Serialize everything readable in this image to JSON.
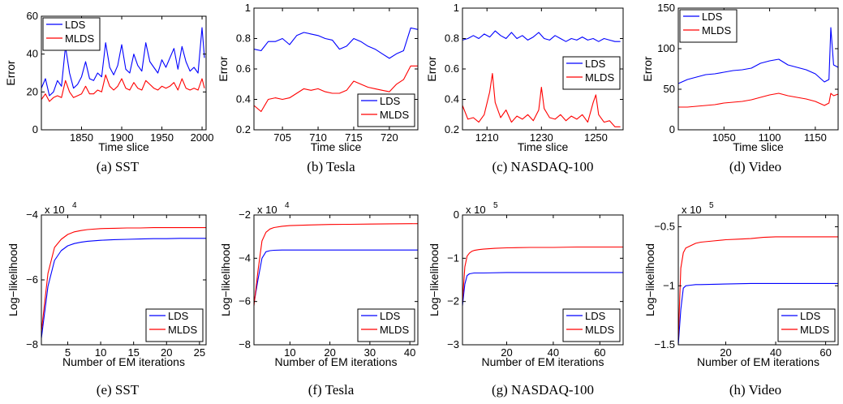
{
  "colors": {
    "lds": "#0000ff",
    "mlds": "#ff0000"
  },
  "chart_data": [
    {
      "type": "line",
      "caption": "(a)  SST",
      "xlabel": "Time slice",
      "ylabel": "Error",
      "xlim": [
        1800,
        2005
      ],
      "ylim": [
        0,
        60
      ],
      "xticks": [
        1850,
        1900,
        1950,
        2000
      ],
      "yticks": [
        0,
        20,
        40,
        60
      ],
      "legend": {
        "position": "top-left"
      },
      "series": [
        {
          "name": "LDS",
          "x": [
            1800,
            1805,
            1810,
            1815,
            1820,
            1825,
            1830,
            1835,
            1840,
            1845,
            1850,
            1855,
            1860,
            1865,
            1870,
            1875,
            1880,
            1885,
            1890,
            1895,
            1900,
            1905,
            1910,
            1915,
            1920,
            1925,
            1930,
            1935,
            1940,
            1945,
            1950,
            1955,
            1960,
            1965,
            1970,
            1975,
            1980,
            1985,
            1990,
            1995,
            2000,
            2003
          ],
          "y": [
            22,
            27,
            18,
            20,
            26,
            23,
            44,
            30,
            22,
            24,
            28,
            36,
            27,
            26,
            30,
            28,
            46,
            33,
            29,
            34,
            45,
            32,
            30,
            40,
            34,
            31,
            46,
            36,
            33,
            30,
            37,
            33,
            38,
            43,
            32,
            44,
            36,
            31,
            33,
            30,
            54,
            38
          ]
        },
        {
          "name": "MLDS",
          "x": [
            1800,
            1805,
            1810,
            1815,
            1820,
            1825,
            1830,
            1835,
            1840,
            1845,
            1850,
            1855,
            1860,
            1865,
            1870,
            1875,
            1880,
            1885,
            1890,
            1895,
            1900,
            1905,
            1910,
            1915,
            1920,
            1925,
            1930,
            1935,
            1940,
            1945,
            1950,
            1955,
            1960,
            1965,
            1970,
            1975,
            1980,
            1985,
            1990,
            1995,
            2000,
            2003
          ],
          "y": [
            16,
            19,
            15,
            17,
            18,
            17,
            26,
            20,
            17,
            18,
            19,
            23,
            19,
            19,
            21,
            20,
            29,
            23,
            21,
            23,
            27,
            22,
            21,
            25,
            22,
            21,
            26,
            24,
            22,
            21,
            23,
            22,
            23,
            25,
            21,
            27,
            22,
            21,
            22,
            21,
            27,
            22
          ]
        }
      ]
    },
    {
      "type": "line",
      "caption": "(b)  Tesla",
      "xlabel": "Time slice",
      "ylabel": "Error",
      "xlim": [
        701,
        724
      ],
      "ylim": [
        0.2,
        1
      ],
      "xticks": [
        705,
        710,
        715,
        720
      ],
      "yticks": [
        0.2,
        0.4,
        0.6,
        0.8,
        1
      ],
      "ytick_labels": [
        "0.2",
        "0.4",
        "0.6",
        "0.8",
        "1"
      ],
      "legend": {
        "position": "bottom-right"
      },
      "series": [
        {
          "name": "LDS",
          "x": [
            701,
            702,
            703,
            704,
            705,
            706,
            707,
            708,
            709,
            710,
            711,
            712,
            713,
            714,
            715,
            716,
            717,
            718,
            719,
            720,
            721,
            722,
            723,
            724
          ],
          "y": [
            0.73,
            0.72,
            0.78,
            0.78,
            0.8,
            0.76,
            0.82,
            0.84,
            0.83,
            0.82,
            0.8,
            0.79,
            0.73,
            0.75,
            0.8,
            0.78,
            0.75,
            0.73,
            0.7,
            0.67,
            0.7,
            0.72,
            0.87,
            0.86
          ]
        },
        {
          "name": "MLDS",
          "x": [
            701,
            702,
            703,
            704,
            705,
            706,
            707,
            708,
            709,
            710,
            711,
            712,
            713,
            714,
            715,
            716,
            717,
            718,
            719,
            720,
            721,
            722,
            723,
            724
          ],
          "y": [
            0.36,
            0.32,
            0.4,
            0.41,
            0.4,
            0.41,
            0.44,
            0.47,
            0.46,
            0.47,
            0.45,
            0.44,
            0.44,
            0.46,
            0.52,
            0.5,
            0.48,
            0.47,
            0.46,
            0.45,
            0.5,
            0.53,
            0.62,
            0.62
          ]
        }
      ]
    },
    {
      "type": "line",
      "caption": "(c)  NASDAQ-100",
      "xlabel": "Time slice",
      "ylabel": "Error",
      "xlim": [
        1201,
        1260
      ],
      "ylim": [
        0.2,
        1
      ],
      "xticks": [
        1210,
        1230,
        1250
      ],
      "yticks": [
        0.2,
        0.4,
        0.6,
        0.8,
        1
      ],
      "ytick_labels": [
        "0.2",
        "0.4",
        "0.6",
        "0.8",
        "1"
      ],
      "legend": {
        "position": "center-right"
      },
      "series": [
        {
          "name": "LDS",
          "x": [
            1201,
            1203,
            1205,
            1207,
            1209,
            1211,
            1213,
            1215,
            1217,
            1219,
            1221,
            1223,
            1225,
            1227,
            1229,
            1231,
            1233,
            1235,
            1237,
            1239,
            1241,
            1243,
            1245,
            1247,
            1249,
            1251,
            1253,
            1255,
            1257,
            1259
          ],
          "y": [
            0.79,
            0.8,
            0.82,
            0.8,
            0.83,
            0.81,
            0.85,
            0.82,
            0.8,
            0.84,
            0.8,
            0.82,
            0.79,
            0.81,
            0.84,
            0.8,
            0.79,
            0.82,
            0.8,
            0.78,
            0.8,
            0.79,
            0.81,
            0.79,
            0.8,
            0.78,
            0.8,
            0.79,
            0.78,
            0.78
          ]
        },
        {
          "name": "MLDS",
          "x": [
            1201,
            1203,
            1205,
            1207,
            1209,
            1211,
            1212,
            1213,
            1215,
            1217,
            1219,
            1221,
            1223,
            1225,
            1227,
            1229,
            1230,
            1231,
            1233,
            1235,
            1237,
            1239,
            1241,
            1243,
            1245,
            1247,
            1249,
            1250,
            1251,
            1253,
            1255,
            1257,
            1259
          ],
          "y": [
            0.36,
            0.27,
            0.28,
            0.25,
            0.3,
            0.45,
            0.57,
            0.38,
            0.28,
            0.33,
            0.25,
            0.29,
            0.27,
            0.3,
            0.26,
            0.33,
            0.48,
            0.34,
            0.28,
            0.27,
            0.3,
            0.26,
            0.29,
            0.27,
            0.3,
            0.25,
            0.38,
            0.43,
            0.3,
            0.25,
            0.26,
            0.22,
            0.22
          ]
        }
      ]
    },
    {
      "type": "line",
      "caption": "(d)  Video",
      "xlabel": "Time slice",
      "ylabel": "Error",
      "xlim": [
        1000,
        1175
      ],
      "ylim": [
        0,
        150
      ],
      "xticks": [
        1050,
        1100,
        1150
      ],
      "yticks": [
        0,
        50,
        100,
        150
      ],
      "legend": {
        "position": "top-left"
      },
      "series": [
        {
          "name": "LDS",
          "x": [
            1000,
            1010,
            1020,
            1030,
            1040,
            1050,
            1060,
            1070,
            1080,
            1090,
            1100,
            1110,
            1120,
            1130,
            1140,
            1150,
            1160,
            1165,
            1167,
            1170,
            1175
          ],
          "y": [
            57,
            62,
            65,
            68,
            69,
            71,
            73,
            74,
            76,
            82,
            85,
            87,
            80,
            77,
            74,
            69,
            59,
            62,
            126,
            80,
            77
          ]
        },
        {
          "name": "MLDS",
          "x": [
            1000,
            1010,
            1020,
            1030,
            1040,
            1050,
            1060,
            1070,
            1080,
            1090,
            1100,
            1110,
            1120,
            1130,
            1140,
            1150,
            1160,
            1165,
            1167,
            1170,
            1175
          ],
          "y": [
            28,
            28,
            29,
            30,
            31,
            33,
            34,
            35,
            37,
            40,
            43,
            45,
            42,
            40,
            38,
            35,
            30,
            33,
            45,
            42,
            44
          ]
        }
      ]
    },
    {
      "type": "line",
      "caption": "(e)  SST",
      "xlabel": "Number of EM iterations",
      "ylabel": "Log−likelihood",
      "multiplier": "x 10",
      "multiplier_exp": "4",
      "xlim": [
        1,
        26
      ],
      "ylim": [
        -8,
        -4
      ],
      "xticks": [
        5,
        10,
        15,
        20,
        25
      ],
      "yticks": [
        -8,
        -6,
        -4
      ],
      "ytick_labels": [
        "−8",
        "−6",
        "−4"
      ],
      "legend": {
        "position": "bottom-right"
      },
      "series": [
        {
          "name": "LDS",
          "x": [
            1,
            2,
            3,
            4,
            5,
            6,
            7,
            8,
            10,
            12,
            14,
            16,
            18,
            20,
            22,
            24,
            26
          ],
          "y": [
            -7.8,
            -6.2,
            -5.4,
            -5.1,
            -4.95,
            -4.88,
            -4.84,
            -4.81,
            -4.78,
            -4.76,
            -4.75,
            -4.74,
            -4.73,
            -4.73,
            -4.72,
            -4.72,
            -4.72
          ]
        },
        {
          "name": "MLDS",
          "x": [
            1,
            2,
            3,
            4,
            5,
            6,
            7,
            8,
            10,
            12,
            14,
            16,
            18,
            20,
            22,
            24,
            26
          ],
          "y": [
            -7.6,
            -5.8,
            -5.0,
            -4.75,
            -4.6,
            -4.52,
            -4.48,
            -4.45,
            -4.42,
            -4.41,
            -4.4,
            -4.4,
            -4.39,
            -4.39,
            -4.39,
            -4.39,
            -4.39
          ]
        }
      ]
    },
    {
      "type": "line",
      "caption": "(f)  Tesla",
      "xlabel": "Number of EM iterations",
      "ylabel": "Log−likelihood",
      "multiplier": "x 10",
      "multiplier_exp": "4",
      "xlim": [
        1,
        42
      ],
      "ylim": [
        -8,
        -2
      ],
      "xticks": [
        10,
        20,
        30,
        40
      ],
      "yticks": [
        -8,
        -6,
        -4,
        -2
      ],
      "ytick_labels": [
        "−8",
        "−6",
        "−4",
        "−2"
      ],
      "legend": {
        "position": "bottom-right"
      },
      "series": [
        {
          "name": "LDS",
          "x": [
            1,
            2,
            3,
            4,
            5,
            6,
            8,
            10,
            15,
            20,
            25,
            30,
            35,
            42
          ],
          "y": [
            -6.1,
            -5.0,
            -4.0,
            -3.7,
            -3.65,
            -3.63,
            -3.62,
            -3.62,
            -3.62,
            -3.62,
            -3.62,
            -3.62,
            -3.62,
            -3.62
          ]
        },
        {
          "name": "MLDS",
          "x": [
            1,
            2,
            3,
            4,
            5,
            6,
            8,
            10,
            15,
            20,
            25,
            30,
            35,
            42
          ],
          "y": [
            -6.2,
            -4.6,
            -3.2,
            -2.8,
            -2.65,
            -2.58,
            -2.52,
            -2.49,
            -2.46,
            -2.44,
            -2.43,
            -2.42,
            -2.41,
            -2.4
          ]
        }
      ]
    },
    {
      "type": "line",
      "caption": "(g)  NASDAQ-100",
      "xlabel": "Number of EM iterations",
      "ylabel": "Log−likelihood",
      "multiplier": "x 10",
      "multiplier_exp": "5",
      "xlim": [
        1,
        70
      ],
      "ylim": [
        -3,
        0
      ],
      "xticks": [
        20,
        40,
        60
      ],
      "yticks": [
        -3,
        -2,
        -1,
        0
      ],
      "ytick_labels": [
        "−3",
        "−2",
        "−1",
        "0"
      ],
      "legend": {
        "position": "bottom-right"
      },
      "series": [
        {
          "name": "LDS",
          "x": [
            1,
            2,
            3,
            4,
            5,
            6,
            8,
            10,
            20,
            30,
            40,
            50,
            60,
            70
          ],
          "y": [
            -2.1,
            -1.6,
            -1.4,
            -1.36,
            -1.35,
            -1.34,
            -1.34,
            -1.34,
            -1.33,
            -1.33,
            -1.33,
            -1.33,
            -1.33,
            -1.33
          ]
        },
        {
          "name": "MLDS",
          "x": [
            1,
            2,
            3,
            4,
            5,
            6,
            8,
            10,
            15,
            20,
            30,
            40,
            50,
            60,
            70
          ],
          "y": [
            -2.0,
            -1.2,
            -0.95,
            -0.88,
            -0.84,
            -0.82,
            -0.8,
            -0.79,
            -0.77,
            -0.76,
            -0.75,
            -0.75,
            -0.74,
            -0.74,
            -0.74
          ]
        }
      ]
    },
    {
      "type": "line",
      "caption": "(h)  Video",
      "xlabel": "Number of EM iterations",
      "ylabel": "Log−likelihood",
      "multiplier": "x 10",
      "multiplier_exp": "5",
      "xlim": [
        1,
        65
      ],
      "ylim": [
        -1.5,
        -0.4
      ],
      "xticks": [
        20,
        40,
        60
      ],
      "yticks": [
        -1.5,
        -1,
        -0.5
      ],
      "ytick_labels": [
        "−1.5",
        "−1",
        "−0.5"
      ],
      "legend": {
        "position": "bottom-right"
      },
      "series": [
        {
          "name": "LDS",
          "x": [
            1,
            2,
            3,
            4,
            6,
            8,
            10,
            20,
            30,
            40,
            50,
            60,
            65
          ],
          "y": [
            -1.5,
            -1.2,
            -1.02,
            -1.0,
            -0.995,
            -0.99,
            -0.99,
            -0.985,
            -0.98,
            -0.98,
            -0.98,
            -0.98,
            -0.98
          ]
        },
        {
          "name": "MLDS",
          "x": [
            1,
            2,
            3,
            4,
            6,
            8,
            10,
            15,
            20,
            25,
            30,
            35,
            40,
            50,
            60,
            65
          ],
          "y": [
            -1.45,
            -0.85,
            -0.72,
            -0.68,
            -0.66,
            -0.64,
            -0.63,
            -0.62,
            -0.61,
            -0.605,
            -0.6,
            -0.59,
            -0.585,
            -0.585,
            -0.585,
            -0.585
          ]
        }
      ]
    }
  ]
}
